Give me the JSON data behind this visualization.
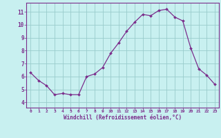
{
  "x": [
    0,
    1,
    2,
    3,
    4,
    5,
    6,
    7,
    8,
    9,
    10,
    11,
    12,
    13,
    14,
    15,
    16,
    17,
    18,
    19,
    20,
    21,
    22,
    23
  ],
  "y": [
    6.3,
    5.7,
    5.3,
    4.6,
    4.7,
    4.6,
    4.6,
    6.0,
    6.2,
    6.7,
    7.8,
    8.6,
    9.5,
    10.2,
    10.8,
    10.7,
    11.1,
    11.2,
    10.6,
    10.3,
    8.2,
    6.6,
    6.1,
    5.4
  ],
  "line_color": "#7b2d8b",
  "marker": "D",
  "marker_size": 2.0,
  "bg_color": "#c8f0f0",
  "grid_color": "#99cccc",
  "xlabel": "Windchill (Refroidissement éolien,°C)",
  "ylabel_ticks": [
    4,
    5,
    6,
    7,
    8,
    9,
    10,
    11
  ],
  "xtick_labels": [
    "0",
    "1",
    "2",
    "3",
    "4",
    "5",
    "6",
    "7",
    "8",
    "9",
    "10",
    "11",
    "12",
    "13",
    "14",
    "15",
    "16",
    "17",
    "18",
    "19",
    "20",
    "21",
    "22",
    "23"
  ],
  "ylim": [
    3.6,
    11.7
  ],
  "xlim": [
    -0.5,
    23.5
  ]
}
